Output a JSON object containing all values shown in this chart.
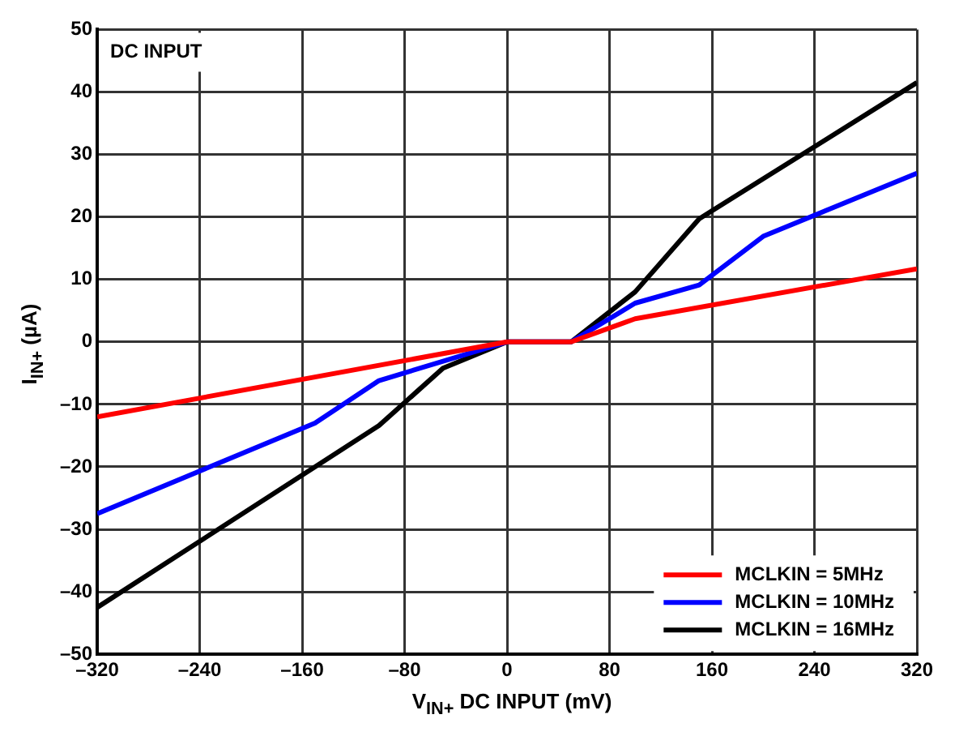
{
  "chart_data": {
    "type": "line",
    "xlabel": "V$_{IN+}$ DC INPUT (mV)",
    "ylabel": "I$_{IN+}$ (µA)",
    "annotations": [
      "DC INPUT"
    ],
    "xlim": [
      -320,
      320
    ],
    "xticks": [
      {
        "value": -320,
        "label": "–320"
      },
      {
        "value": -240,
        "label": "–240"
      },
      {
        "value": -160,
        "label": "–160"
      },
      {
        "value": -80,
        "label": "–80"
      },
      0,
      80,
      160,
      240,
      320
    ],
    "ylim": [
      -50,
      50
    ],
    "yticks": [
      {
        "value": -50,
        "label": "–50"
      },
      {
        "value": -40,
        "label": "–40"
      },
      {
        "value": -30,
        "label": "–30"
      },
      {
        "value": -20,
        "label": "–20"
      },
      {
        "value": -10,
        "label": "–10"
      },
      0,
      10,
      20,
      30,
      40,
      50
    ],
    "grid": true,
    "legend": "bottom right",
    "marker": "none",
    "line_style": "solid",
    "series": [
      {
        "name": "MCLKIN = 5MHz",
        "color": "#ff0000",
        "x": [
          -320,
          0,
          50,
          100,
          320
        ],
        "values": [
          -12,
          0,
          0,
          3.7,
          11.7
        ]
      },
      {
        "name": "MCLKIN = 10MHz",
        "color": "#0000ff",
        "x": [
          -320,
          -150,
          -100,
          0,
          50,
          100,
          150,
          200,
          320
        ],
        "values": [
          -27.5,
          -13,
          -6.2,
          0,
          0,
          6.2,
          9.1,
          16.9,
          27
        ]
      },
      {
        "name": "MCLKIN = 16MHz",
        "color": "#000000",
        "x": [
          -320,
          -100,
          -50,
          0,
          50,
          100,
          150,
          320
        ],
        "values": [
          -42.5,
          -13.4,
          -4.2,
          0,
          0,
          8,
          19.7,
          41.5
        ]
      }
    ]
  }
}
